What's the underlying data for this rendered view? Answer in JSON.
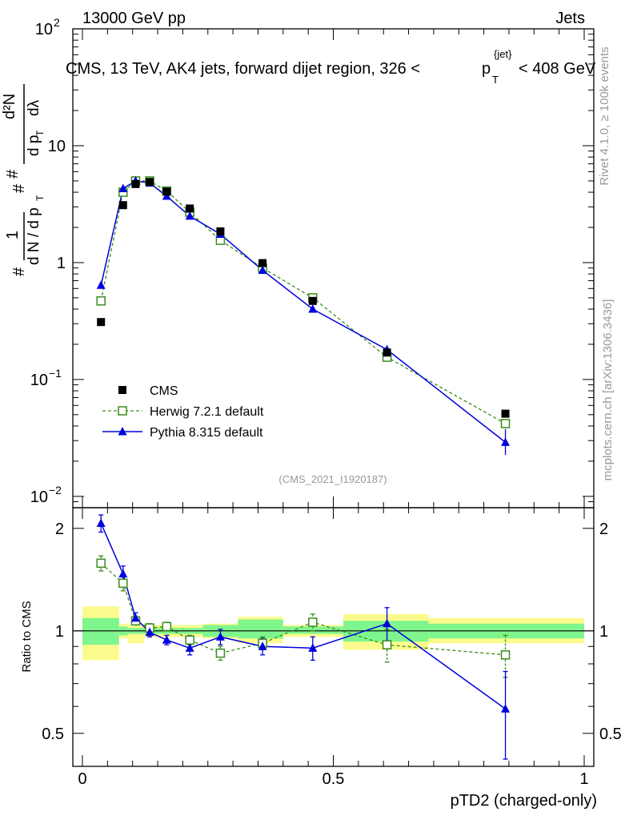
{
  "header": {
    "energy_label": "13000 GeV pp",
    "category_label": "Jets",
    "title_prefix": "CMS, 13 TeV, AK4 jets, forward dijet region, 326 <",
    "title_p": "p",
    "title_sup": "{jet}",
    "title_sub": "T",
    "title_suffix": "< 408 GeV",
    "analysis_tag": "(CMS_2021_I1920187)"
  },
  "side_labels": {
    "rivet": "Rivet 4.1.0, ≥ 100k events",
    "mcplots": "mcplots.cern.ch [arXiv:1306.3436]"
  },
  "axes": {
    "xlabel": "pTD2 (charged-only)",
    "ratio_ylabel": "Ratio to CMS",
    "main_ylabel_hash": "#",
    "main_ylabel_one": "1",
    "main_ylabel_denom": "d N / d p",
    "main_ylabel_T": "T",
    "main_ylabel_num": "d²N",
    "main_ylabel_den2": "d p",
    "main_ylabel_lambda": "dλ",
    "x_ticks": [
      "0",
      "0.5",
      "1"
    ],
    "main_y_ticks": [
      {
        "base": "10",
        "exp": "2",
        "value": 100
      },
      {
        "base": "10",
        "exp": "",
        "value": 10
      },
      {
        "base": "1",
        "exp": "",
        "value": 1
      },
      {
        "base": "10",
        "exp": "−1",
        "value": 0.1
      },
      {
        "base": "10",
        "exp": "−2",
        "value": 0.01
      }
    ],
    "ratio_y_ticks": [
      "2",
      "1",
      "0.5"
    ]
  },
  "colors": {
    "cms": "#000000",
    "herwig": "#3a8c1c",
    "pythia": "#0000dd",
    "band_inner": "#7ff58d",
    "band_outer": "#fbfb8d"
  },
  "chart_data": {
    "type": "scatter",
    "x_range": [
      0,
      1
    ],
    "main": {
      "yscale": "log",
      "ylim": [
        0.008,
        100
      ],
      "legend_placement": "lower-left",
      "series": [
        {
          "name": "CMS",
          "x": [
            0.037,
            0.081,
            0.106,
            0.134,
            0.168,
            0.214,
            0.275,
            0.359,
            0.459,
            0.607,
            0.843
          ],
          "y": [
            0.31,
            3.1,
            4.7,
            4.9,
            4.05,
            2.9,
            1.85,
            0.99,
            0.47,
            0.17,
            0.051
          ]
        },
        {
          "name": "Herwig 7.2.1 default",
          "x": [
            0.037,
            0.081,
            0.106,
            0.134,
            0.168,
            0.214,
            0.275,
            0.359,
            0.459,
            0.607,
            0.843
          ],
          "y": [
            0.47,
            4.0,
            5.0,
            5.0,
            4.1,
            2.7,
            1.55,
            0.9,
            0.5,
            0.155,
            0.042
          ]
        },
        {
          "name": "Pythia 8.315 default",
          "x": [
            0.037,
            0.081,
            0.106,
            0.134,
            0.168,
            0.214,
            0.275,
            0.359,
            0.459,
            0.607,
            0.843
          ],
          "y": [
            0.64,
            4.3,
            5.0,
            4.8,
            3.7,
            2.5,
            1.75,
            0.86,
            0.4,
            0.18,
            0.029
          ]
        }
      ]
    },
    "ratio": {
      "yscale": "log",
      "ylim": [
        0.4,
        2.3
      ],
      "ylabel": "Ratio to CMS",
      "bands": {
        "edges": [
          0,
          0.073,
          0.09,
          0.122,
          0.15,
          0.19,
          0.24,
          0.31,
          0.4,
          0.52,
          0.69,
          1.0
        ],
        "inner_low": [
          0.91,
          0.97,
          0.98,
          0.98,
          0.98,
          0.98,
          0.96,
          0.95,
          0.98,
          0.93,
          0.95
        ],
        "inner_high": [
          1.09,
          1.03,
          1.02,
          1.02,
          1.02,
          1.02,
          1.04,
          1.08,
          1.03,
          1.07,
          1.05
        ],
        "outer_low": [
          0.82,
          0.95,
          0.92,
          0.96,
          0.96,
          0.96,
          0.95,
          0.92,
          0.96,
          0.88,
          0.92
        ],
        "outer_high": [
          1.18,
          1.05,
          1.04,
          1.04,
          1.04,
          1.04,
          1.05,
          1.1,
          1.04,
          1.12,
          1.09
        ]
      },
      "series": [
        {
          "name": "Herwig 7.2.1 default",
          "x": [
            0.037,
            0.081,
            0.106,
            0.134,
            0.168,
            0.214,
            0.275,
            0.359,
            0.459,
            0.607,
            0.843
          ],
          "y": [
            1.58,
            1.38,
            1.07,
            1.02,
            1.03,
            0.94,
            0.86,
            0.92,
            1.06,
            0.91,
            0.85
          ],
          "err": [
            0.08,
            0.07,
            0.03,
            0.03,
            0.03,
            0.03,
            0.04,
            0.04,
            0.06,
            0.1,
            0.12
          ]
        },
        {
          "name": "Pythia 8.315 default",
          "x": [
            0.037,
            0.081,
            0.106,
            0.134,
            0.168,
            0.214,
            0.275,
            0.359,
            0.459,
            0.607,
            0.843
          ],
          "y": [
            2.07,
            1.47,
            1.09,
            0.99,
            0.94,
            0.89,
            0.96,
            0.9,
            0.89,
            1.05,
            0.59
          ],
          "err": [
            0.12,
            0.08,
            0.04,
            0.03,
            0.03,
            0.04,
            0.05,
            0.05,
            0.07,
            0.12,
            0.17
          ]
        }
      ]
    },
    "legend": [
      {
        "label": "CMS",
        "marker": "filled-square"
      },
      {
        "label": "Herwig 7.2.1 default",
        "marker": "open-square-dashed"
      },
      {
        "label": "Pythia 8.315 default",
        "marker": "filled-triangle-solid"
      }
    ]
  }
}
